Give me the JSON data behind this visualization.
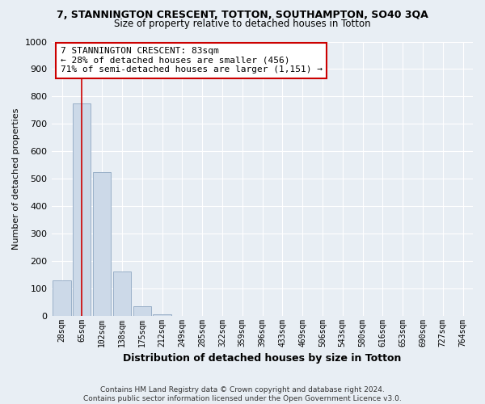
{
  "title": "7, STANNINGTON CRESCENT, TOTTON, SOUTHAMPTON, SO40 3QA",
  "subtitle": "Size of property relative to detached houses in Totton",
  "xlabel": "Distribution of detached houses by size in Totton",
  "ylabel": "Number of detached properties",
  "footnote": "Contains HM Land Registry data © Crown copyright and database right 2024.\nContains public sector information licensed under the Open Government Licence v3.0.",
  "categories": [
    "28sqm",
    "65sqm",
    "102sqm",
    "138sqm",
    "175sqm",
    "212sqm",
    "249sqm",
    "285sqm",
    "322sqm",
    "359sqm",
    "396sqm",
    "433sqm",
    "469sqm",
    "506sqm",
    "543sqm",
    "580sqm",
    "616sqm",
    "653sqm",
    "690sqm",
    "727sqm",
    "764sqm"
  ],
  "values": [
    130,
    775,
    525,
    160,
    35,
    5,
    0,
    0,
    0,
    0,
    0,
    0,
    0,
    0,
    0,
    0,
    0,
    0,
    0,
    0,
    0
  ],
  "bar_color": "#ccd9e8",
  "bar_edge_color": "#9ab0c8",
  "property_line_x": 1.0,
  "property_line_color": "#cc0000",
  "annotation_text": "7 STANNINGTON CRESCENT: 83sqm\n← 28% of detached houses are smaller (456)\n71% of semi-detached houses are larger (1,151) →",
  "annotation_box_color": "#ffffff",
  "annotation_box_edge_color": "#cc0000",
  "ylim": [
    0,
    1000
  ],
  "yticks": [
    0,
    100,
    200,
    300,
    400,
    500,
    600,
    700,
    800,
    900,
    1000
  ],
  "background_color": "#e8eef4",
  "grid_color": "#ffffff",
  "title_fontsize": 9,
  "subtitle_fontsize": 8.5
}
